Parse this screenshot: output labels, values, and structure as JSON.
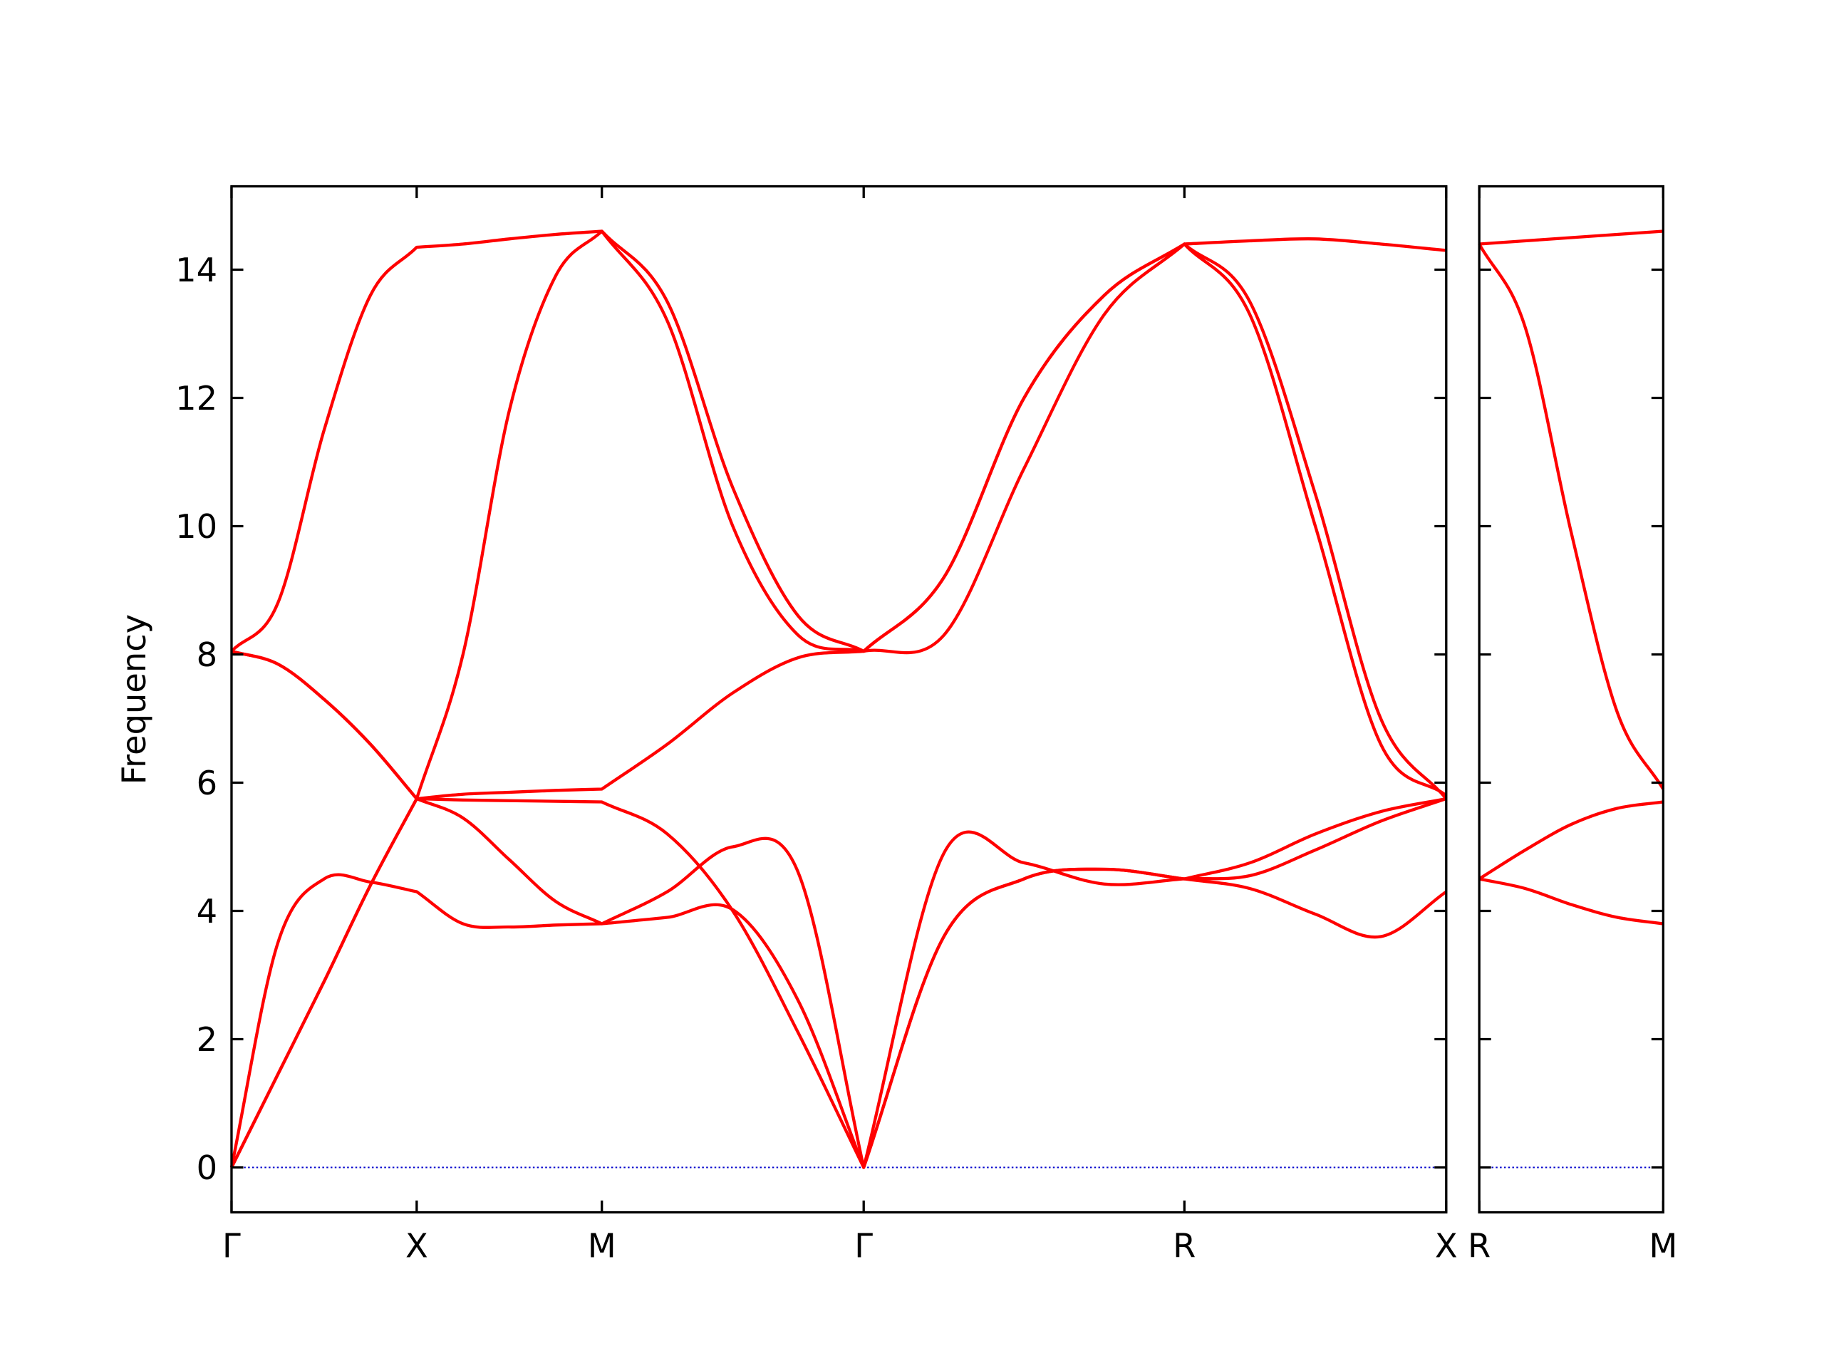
{
  "chart_data": [
    {
      "type": "line",
      "ylabel": "Frequency",
      "x": [
        0,
        0.125,
        0.25,
        0.375,
        0.5,
        0.625,
        0.75,
        0.875,
        1.0,
        1.1768,
        1.3536,
        1.5303,
        1.7071,
        1.9236,
        2.1401,
        2.3566,
        2.5731,
        2.7499,
        2.9267,
        3.1034,
        3.2802
      ],
      "xlim": [
        0,
        3.2802
      ],
      "xticks": [
        {
          "value": 0,
          "label": "Γ"
        },
        {
          "value": 0.5,
          "label": "X"
        },
        {
          "value": 1.0,
          "label": "M"
        },
        {
          "value": 1.7071,
          "label": "Γ"
        },
        {
          "value": 2.5731,
          "label": "R"
        },
        {
          "value": 3.2802,
          "label": "X"
        }
      ],
      "ylim": [
        -0.7,
        15.3
      ],
      "yticks": [
        0,
        2,
        4,
        6,
        8,
        10,
        12,
        14
      ],
      "ytick_labels": true,
      "hlines": [
        0
      ],
      "hline_color": "#0000cc",
      "series": [
        {
          "color": "#ff0000",
          "values": [
            0,
            3.5,
            4.5,
            4.45,
            4.3,
            3.8,
            3.75,
            3.78,
            3.8,
            3.9,
            4.02,
            2.6,
            0,
            3.6,
            4.5,
            4.65,
            4.5,
            4.35,
            3.95,
            3.6,
            4.3
          ]
        },
        {
          "color": "#ff0000",
          "values": [
            0,
            1.45,
            2.9,
            4.4,
            5.75,
            8.0,
            11.8,
            13.9,
            14.6,
            13.2,
            10.0,
            8.3,
            8.05,
            9.2,
            12.0,
            13.6,
            14.4,
            13.5,
            10.5,
            7.0,
            5.75
          ]
        },
        {
          "color": "#ff0000",
          "values": [
            8.05,
            7.85,
            7.3,
            6.6,
            5.75,
            5.45,
            4.8,
            4.15,
            3.8,
            4.3,
            5.0,
            4.6,
            0,
            4.9,
            4.75,
            4.42,
            4.5,
            4.75,
            5.2,
            5.55,
            5.75
          ]
        },
        {
          "color": "#ff0000",
          "values": [
            0,
            1.45,
            2.9,
            4.4,
            5.75,
            5.82,
            5.85,
            5.88,
            5.9,
            6.6,
            7.4,
            7.95,
            8.05,
            8.3,
            10.9,
            13.3,
            14.4,
            13.3,
            10.0,
            6.6,
            5.8
          ]
        },
        {
          "color": "#ff0000",
          "values": [
            8.05,
            7.85,
            7.3,
            6.6,
            5.75,
            5.73,
            5.72,
            5.71,
            5.7,
            5.2,
            4.0,
            2.1,
            0,
            3.6,
            4.5,
            4.65,
            4.5,
            4.55,
            4.95,
            5.4,
            5.75
          ]
        },
        {
          "color": "#ff0000",
          "values": [
            8.05,
            8.8,
            11.5,
            13.6,
            14.35,
            14.4,
            14.48,
            14.55,
            14.6,
            13.5,
            10.6,
            8.6,
            8.05,
            9.2,
            12.0,
            13.6,
            14.4,
            14.45,
            14.48,
            14.4,
            14.3
          ]
        }
      ]
    },
    {
      "type": "line",
      "x": [
        0,
        0.1768,
        0.3536,
        0.5303,
        0.7071
      ],
      "xlim": [
        0,
        0.7071
      ],
      "xticks": [
        {
          "value": 0,
          "label": "R"
        },
        {
          "value": 0.7071,
          "label": "M"
        }
      ],
      "ylim": [
        -0.7,
        15.3
      ],
      "yticks": [
        0,
        2,
        4,
        6,
        8,
        10,
        12,
        14
      ],
      "ytick_labels": false,
      "hlines": [
        0
      ],
      "hline_color": "#0000cc",
      "series": [
        {
          "color": "#ff0000",
          "values": [
            14.4,
            13.1,
            9.9,
            7.1,
            5.9
          ]
        },
        {
          "color": "#ff0000",
          "values": [
            14.4,
            14.45,
            14.5,
            14.55,
            14.6
          ]
        },
        {
          "color": "#ff0000",
          "values": [
            4.5,
            4.95,
            5.35,
            5.6,
            5.7
          ]
        },
        {
          "color": "#ff0000",
          "values": [
            4.5,
            4.35,
            4.1,
            3.9,
            3.8
          ]
        }
      ]
    }
  ]
}
